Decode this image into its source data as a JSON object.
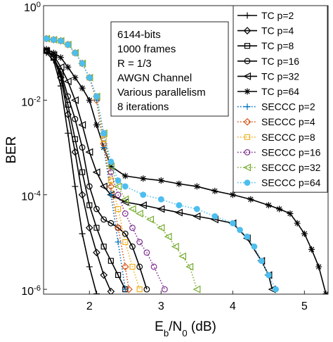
{
  "chart_data": {
    "type": "line",
    "xlabel": "E_b/N_0 (dB)",
    "ylabel": "BER",
    "log_y": true,
    "xlim": [
      1.36,
      5.33
    ],
    "ylim": [
      7.9e-07,
      1
    ],
    "xticks": [
      2,
      3,
      4,
      5
    ],
    "yticks": [
      {
        "value": 1,
        "label": "10^0"
      },
      {
        "value": 0.01,
        "label": "10^-2"
      },
      {
        "value": 0.0001,
        "label": "10^-4"
      },
      {
        "value": 1e-06,
        "label": "10^-6"
      }
    ],
    "legend": "upper right",
    "annotation": [
      "6144-bits",
      "1000 frames",
      "R = 1/3",
      "AWGN Channel",
      "Various parallelism",
      "8 iterations"
    ],
    "series": [
      {
        "name": "TC p=2",
        "color": "#000000",
        "linestyle": "solid",
        "marker": "plus",
        "x": [
          1.4,
          1.5,
          1.6,
          1.7,
          1.8,
          1.9,
          2.0,
          2.1
        ],
        "values": [
          0.1,
          0.07,
          0.02,
          0.002,
          0.00015,
          1.5e-05,
          3e-06,
          8e-07
        ]
      },
      {
        "name": "TC p=4",
        "color": "#000000",
        "linestyle": "solid",
        "marker": "diamond",
        "x": [
          1.4,
          1.5,
          1.6,
          1.7,
          1.8,
          1.9,
          2.0,
          2.1,
          2.2,
          2.3
        ],
        "values": [
          0.11,
          0.08,
          0.03,
          0.005,
          0.0008,
          0.0001,
          2e-05,
          6e-06,
          2e-06,
          9e-07
        ]
      },
      {
        "name": "TC p=8",
        "color": "#000000",
        "linestyle": "solid",
        "marker": "square",
        "x": [
          1.4,
          1.5,
          1.6,
          1.7,
          1.8,
          1.9,
          2.0,
          2.1,
          2.2,
          2.3,
          2.4,
          2.5
        ],
        "values": [
          0.11,
          0.08,
          0.035,
          0.008,
          0.0015,
          0.0003,
          6e-05,
          2e-05,
          8e-06,
          4e-06,
          2e-06,
          1e-06
        ]
      },
      {
        "name": "TC p=16",
        "color": "#000000",
        "linestyle": "solid",
        "marker": "circle",
        "x": [
          1.4,
          1.5,
          1.6,
          1.7,
          1.8,
          1.9,
          2.0,
          2.1,
          2.2,
          2.3,
          2.4,
          2.5,
          2.6,
          2.7,
          2.8
        ],
        "values": [
          0.11,
          0.08,
          0.04,
          0.012,
          0.004,
          0.001,
          0.00015,
          5e-05,
          3e-05,
          2.5e-05,
          2e-05,
          1.5e-05,
          8e-06,
          3e-06,
          1e-06
        ]
      },
      {
        "name": "TC p=32",
        "color": "#000000",
        "linestyle": "solid",
        "marker": "triangle-left",
        "x": [
          1.4,
          1.5,
          1.6,
          1.7,
          1.8,
          1.9,
          2.0,
          2.1,
          2.2,
          2.3,
          2.5,
          2.75,
          3.0,
          3.25,
          3.5,
          3.75,
          4.0,
          4.2,
          4.4,
          4.5,
          4.55
        ],
        "values": [
          0.11,
          0.09,
          0.05,
          0.025,
          0.01,
          0.003,
          0.0008,
          0.0003,
          0.00015,
          0.0001,
          7e-05,
          6e-05,
          5e-05,
          4.2e-05,
          3.5e-05,
          3e-05,
          2.5e-05,
          1.2e-05,
          4e-06,
          2e-06,
          1e-06
        ]
      },
      {
        "name": "TC p=64",
        "color": "#000000",
        "linestyle": "solid",
        "marker": "asterisk",
        "x": [
          1.4,
          1.5,
          1.6,
          1.7,
          1.8,
          1.9,
          2.0,
          2.1,
          2.2,
          2.3,
          2.5,
          2.75,
          3.0,
          3.25,
          3.5,
          3.75,
          4.0,
          4.25,
          4.5,
          4.65,
          4.8,
          4.9,
          5.0,
          5.1,
          5.2,
          5.3
        ],
        "values": [
          0.12,
          0.1,
          0.08,
          0.05,
          0.03,
          0.018,
          0.01,
          0.003,
          0.001,
          0.0004,
          0.00025,
          0.00022,
          0.0002,
          0.00017,
          0.00015,
          0.00012,
          0.0001,
          8e-05,
          6e-05,
          5e-05,
          4e-05,
          2.5e-05,
          1.5e-05,
          7e-06,
          3e-06,
          8e-07
        ]
      },
      {
        "name": "SECCC p=2",
        "color": "#0072BD",
        "linestyle": "dotted",
        "marker": "plus",
        "x": [
          1.4,
          1.5,
          1.6,
          1.7,
          1.8,
          1.9,
          2.0,
          2.1,
          2.2,
          2.3,
          2.4,
          2.5
        ],
        "values": [
          0.2,
          0.19,
          0.18,
          0.15,
          0.1,
          0.06,
          0.03,
          0.01,
          0.001,
          0.0001,
          1e-05,
          1e-06
        ]
      },
      {
        "name": "SECCC p=4",
        "color": "#D95319",
        "linestyle": "dotted",
        "marker": "diamond",
        "x": [
          1.4,
          1.5,
          1.6,
          1.7,
          1.8,
          1.9,
          2.0,
          2.1,
          2.2,
          2.3,
          2.4,
          2.5,
          2.55
        ],
        "values": [
          0.2,
          0.19,
          0.18,
          0.15,
          0.1,
          0.06,
          0.03,
          0.01,
          0.0012,
          0.00015,
          2e-05,
          3e-06,
          1e-06
        ]
      },
      {
        "name": "SECCC p=8",
        "color": "#EDB120",
        "linestyle": "dotted",
        "marker": "square",
        "x": [
          1.4,
          1.5,
          1.6,
          1.7,
          1.8,
          1.9,
          2.0,
          2.1,
          2.2,
          2.3,
          2.4,
          2.5,
          2.6,
          2.7
        ],
        "values": [
          0.2,
          0.19,
          0.18,
          0.15,
          0.1,
          0.06,
          0.03,
          0.012,
          0.0015,
          0.0002,
          5e-05,
          1e-05,
          3e-06,
          1e-06
        ]
      },
      {
        "name": "SECCC p=16",
        "color": "#7E2F8E",
        "linestyle": "dotted",
        "marker": "circle",
        "x": [
          1.4,
          1.5,
          1.6,
          1.7,
          1.8,
          1.9,
          2.0,
          2.1,
          2.2,
          2.3,
          2.4,
          2.5,
          2.6,
          2.7,
          2.8,
          2.9,
          3.05
        ],
        "values": [
          0.2,
          0.19,
          0.18,
          0.15,
          0.1,
          0.06,
          0.03,
          0.012,
          0.002,
          0.0003,
          0.0001,
          4e-05,
          2e-05,
          1e-05,
          6e-06,
          3e-06,
          1e-06
        ]
      },
      {
        "name": "SECCC p=32",
        "color": "#77AC30",
        "linestyle": "dotted",
        "marker": "triangle-left",
        "x": [
          1.4,
          1.5,
          1.6,
          1.7,
          1.8,
          1.9,
          2.0,
          2.1,
          2.2,
          2.3,
          2.4,
          2.5,
          2.6,
          2.7,
          2.85,
          3.0,
          3.1,
          3.2,
          3.3,
          3.4,
          3.5
        ],
        "values": [
          0.2,
          0.19,
          0.18,
          0.15,
          0.1,
          0.06,
          0.03,
          0.012,
          0.002,
          0.0004,
          0.00015,
          8e-05,
          5e-05,
          4e-05,
          3e-05,
          2e-05,
          1.3e-05,
          8e-06,
          5e-06,
          3e-06,
          1e-06
        ]
      },
      {
        "name": "SECCC p=64",
        "color": "#4DBEEE",
        "linestyle": "dotted",
        "marker": "filled-circle",
        "x": [
          1.4,
          1.5,
          1.6,
          1.7,
          1.8,
          1.9,
          2.0,
          2.1,
          2.2,
          2.3,
          2.4,
          2.5,
          2.75,
          3.0,
          3.25,
          3.5,
          3.75,
          4.0,
          4.1,
          4.2,
          4.3,
          4.4,
          4.5,
          4.6
        ],
        "values": [
          0.2,
          0.19,
          0.18,
          0.15,
          0.1,
          0.06,
          0.03,
          0.012,
          0.002,
          0.0005,
          0.0002,
          0.00015,
          0.0001,
          8e-05,
          6e-05,
          5e-05,
          3.5e-05,
          2.5e-05,
          1.8e-05,
          1.3e-05,
          8e-06,
          4e-06,
          2e-06,
          1e-06
        ]
      }
    ]
  }
}
